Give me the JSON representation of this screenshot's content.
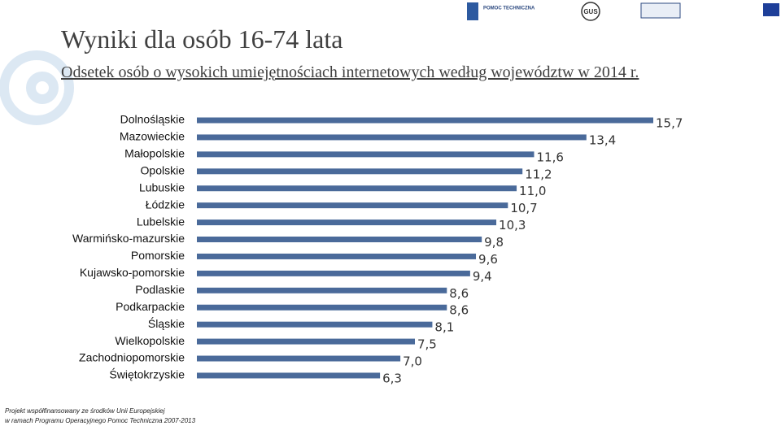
{
  "chart_data": {
    "type": "bar",
    "orientation": "horizontal",
    "title": "Wyniki dla osób 16-74 lata",
    "subtitle": "Odsetek osób o wysokich umiejętnościach internetowych według województw w 2014 r.",
    "categories": [
      "Dolnośląskie",
      "Mazowieckie",
      "Małopolskie",
      "Opolskie",
      "Lubuskie",
      "Łódzkie",
      "Lubelskie",
      "Warmińsko-mazurskie",
      "Pomorskie",
      "Kujawsko-pomorskie",
      "Podlaskie",
      "Podkarpackie",
      "Śląskie",
      "Wielkopolskie",
      "Zachodniopomorskie",
      "Świętokrzyskie"
    ],
    "values": [
      15.7,
      13.4,
      11.6,
      11.2,
      11.0,
      10.7,
      10.3,
      9.8,
      9.6,
      9.4,
      8.6,
      8.6,
      8.1,
      7.5,
      7.0,
      6.3
    ],
    "value_labels": [
      "15,7",
      "13,4",
      "11,6",
      "11,2",
      "11,0",
      "10,7",
      "10,3",
      "9,8",
      "9,6",
      "9,4",
      "8,6",
      "8,6",
      "8,1",
      "7,5",
      "7,0",
      "6,3"
    ],
    "color": "#4a6a9a"
  },
  "footer": {
    "lines": [
      "Projekt współfinansowany ze środków Unii Europejskiej",
      "w ramach Programu Operacyjnego Pomoc Techniczna 2007-2013"
    ]
  },
  "logos": {
    "pomoc": "POMOC TECHNICZNA",
    "gus": "GUS"
  }
}
